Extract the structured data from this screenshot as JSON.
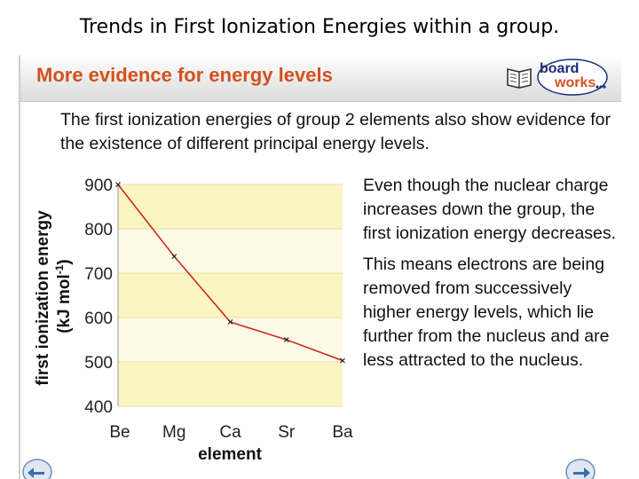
{
  "page": {
    "title": "Trends in First Ionization Energies within a group."
  },
  "slide": {
    "title": "More evidence for energy levels",
    "logo": {
      "board": "board",
      "works": "works"
    },
    "intro": "The first ionization energies of group 2 elements also show evidence for the existence of different principal energy levels.",
    "paragraphs": [
      "Even though the nuclear charge increases down the group, the first ionization energy decreases.",
      "This means electrons are being removed from successively higher energy levels, which lie further from the nucleus and are less attracted to the nucleus."
    ]
  },
  "chart_data": {
    "type": "line",
    "title": "",
    "xlabel": "element",
    "ylabel": "first ionization energy",
    "ylabel_unit": "(kJ mol-1)",
    "categories": [
      "Be",
      "Mg",
      "Ca",
      "Sr",
      "Ba"
    ],
    "values": [
      900,
      738,
      590,
      550,
      503
    ],
    "ylim": [
      400,
      900
    ],
    "yticks": [
      900,
      800,
      700,
      600,
      500,
      400
    ],
    "grid": true,
    "colors": {
      "line": "#cc2b1d",
      "bandA": "#fbf5c4",
      "bandB": "#fdfbe6",
      "marker": "#222222"
    }
  }
}
